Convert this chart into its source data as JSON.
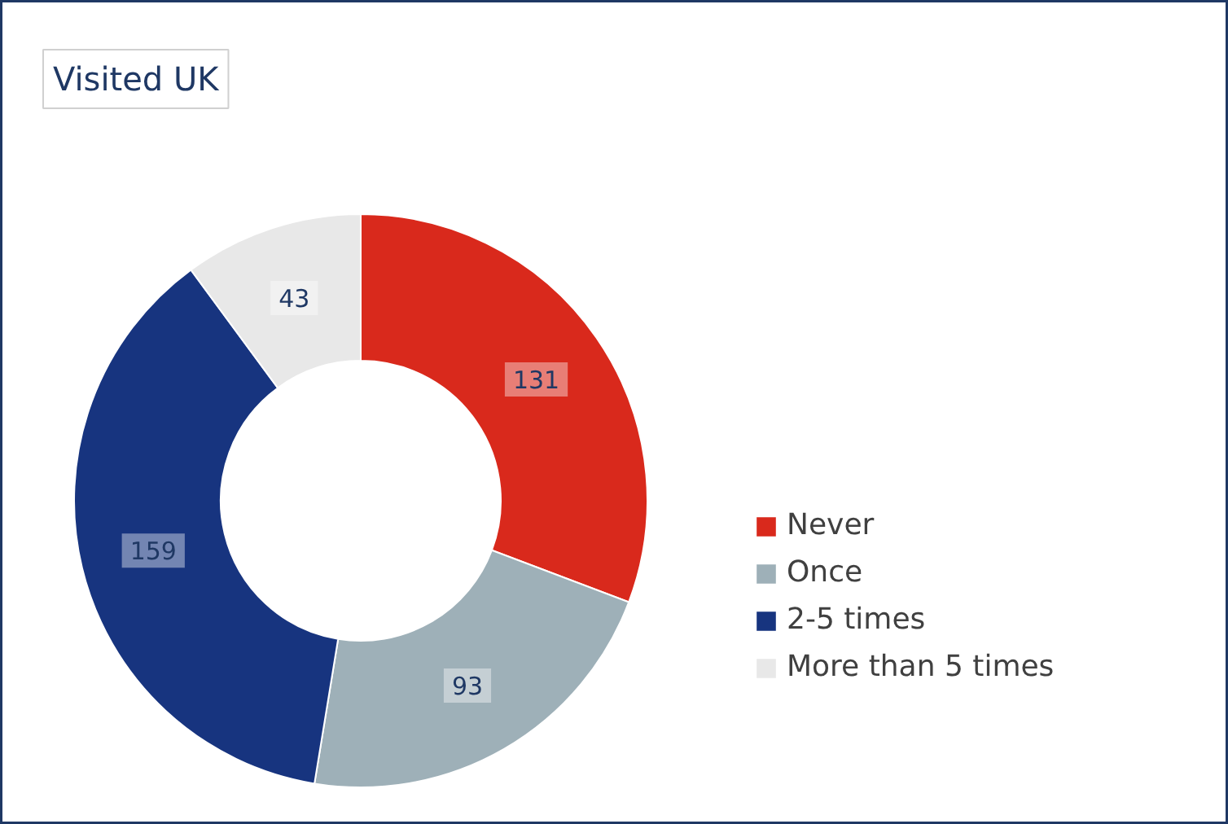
{
  "chart_data": {
    "type": "donut",
    "title": "Visited UK",
    "categories": [
      "Never",
      "Once",
      "2-5 times",
      "More than 5 times"
    ],
    "values": [
      131,
      93,
      159,
      43
    ],
    "colors": [
      "#d9291c",
      "#9eb0b8",
      "#17347f",
      "#e8e8e8"
    ],
    "data_labels": true,
    "legend": "right"
  }
}
